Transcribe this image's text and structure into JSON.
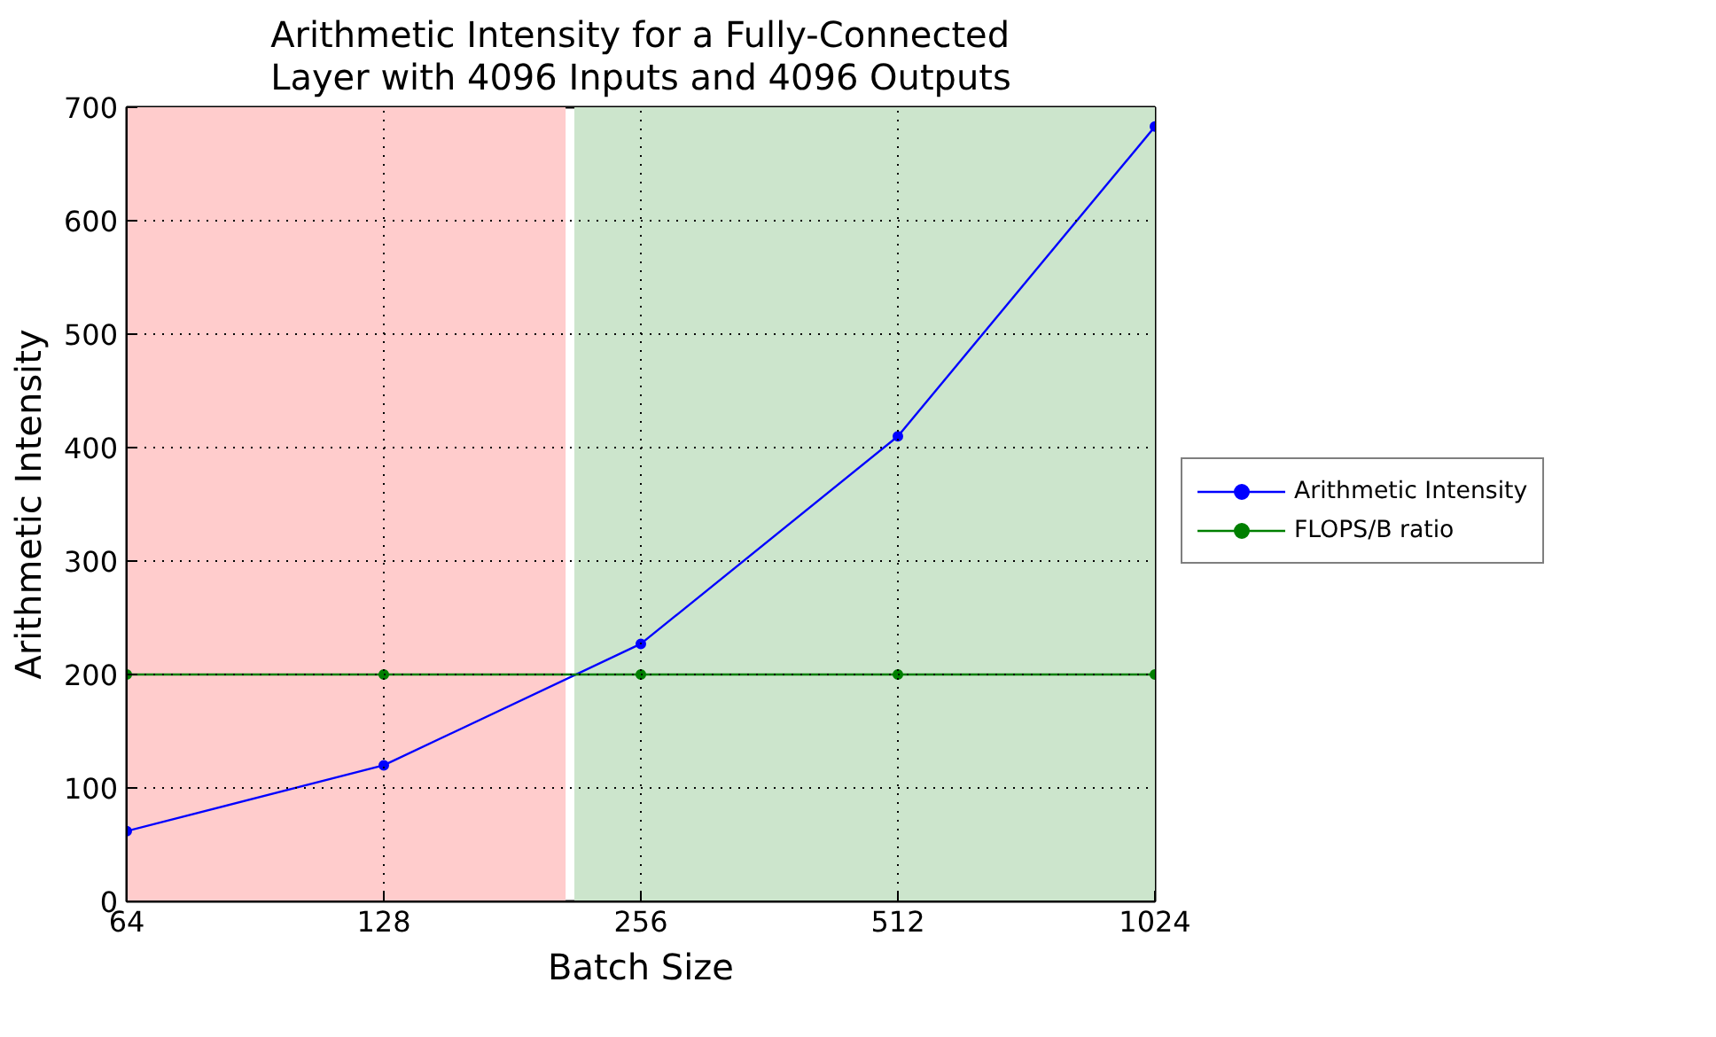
{
  "chart_data": {
    "type": "line",
    "title": "Arithmetic Intensity for a Fully-Connected\nLayer with 4096 Inputs and 4096 Outputs",
    "xlabel": "Batch Size",
    "ylabel": "Arithmetic Intensity",
    "x": [
      64,
      128,
      256,
      512,
      1024
    ],
    "log": "x",
    "series": [
      {
        "name": "Arithmetic Intensity",
        "color": "#0000ff",
        "values": [
          62,
          120,
          227,
          410,
          683
        ]
      },
      {
        "name": "FLOPS/B ratio",
        "color": "#007f00",
        "values": [
          200,
          200,
          200,
          200,
          200
        ]
      }
    ],
    "xlim": [
      64,
      1024
    ],
    "xticks": [
      64,
      128,
      256,
      512,
      1024
    ],
    "ylim": [
      0,
      700
    ],
    "yticks": [
      0,
      100,
      200,
      300,
      400,
      500,
      600,
      700
    ],
    "bands": [
      {
        "axis": "x",
        "from": 64,
        "to": 209,
        "color": "#ffcccc"
      },
      {
        "axis": "x",
        "from": 214,
        "to": 1024,
        "color": "#cce5cc"
      }
    ],
    "grid": true,
    "legend": "right",
    "marker": "circle",
    "line_style": "solid"
  }
}
